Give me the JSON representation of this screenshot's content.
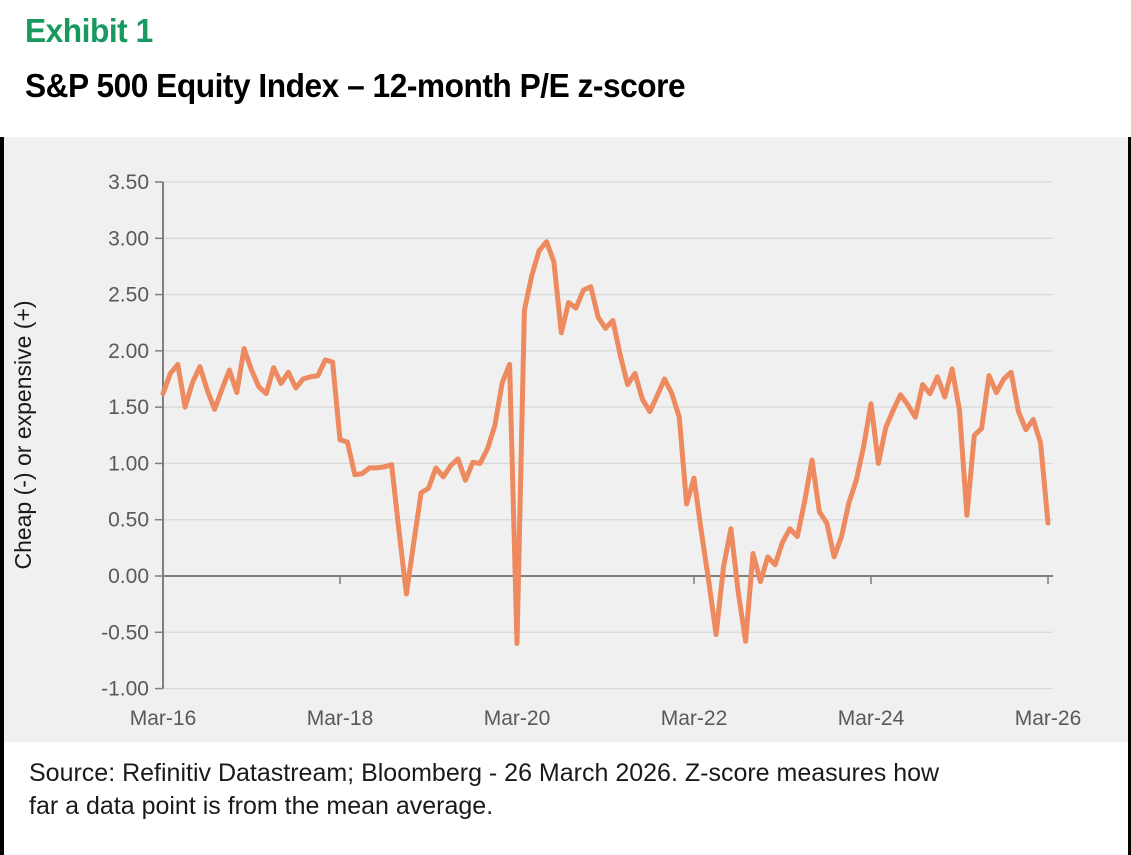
{
  "header": {
    "exhibit_label": "Exhibit 1",
    "title": "S&P 500 Equity Index – 12-month P/E z-score"
  },
  "chart_data": {
    "type": "line",
    "title": "S&P 500 Equity Index – 12-month P/E z-score",
    "xlabel": "",
    "ylabel": "Cheap (-) or expensive (+)",
    "x_start": "Mar-16",
    "x_freq": "monthly",
    "x_tick_labels": [
      "Mar-16",
      "Mar-18",
      "Mar-20",
      "Mar-22",
      "Mar-24",
      "Mar-26"
    ],
    "x_tick_interval_months": 24,
    "ylim": [
      -1.0,
      3.5
    ],
    "ytick_step": 0.5,
    "ytick_format_decimals": 2,
    "grid": true,
    "legend_position": "none",
    "series": [
      {
        "name": "S&P 500 12-month P/E z-score",
        "values": [
          1.62,
          1.8,
          1.88,
          1.5,
          1.72,
          1.86,
          1.65,
          1.48,
          1.66,
          1.83,
          1.63,
          2.02,
          1.83,
          1.68,
          1.62,
          1.85,
          1.71,
          1.81,
          1.67,
          1.75,
          1.77,
          1.78,
          1.92,
          1.9,
          1.21,
          1.19,
          0.9,
          0.91,
          0.96,
          0.96,
          0.97,
          0.99,
          0.4,
          -0.16,
          0.3,
          0.74,
          0.78,
          0.96,
          0.88,
          0.98,
          1.04,
          0.85,
          1.01,
          1.0,
          1.13,
          1.34,
          1.72,
          1.88,
          -0.6,
          2.36,
          2.67,
          2.89,
          2.97,
          2.79,
          2.16,
          2.43,
          2.38,
          2.54,
          2.57,
          2.3,
          2.2,
          2.27,
          1.96,
          1.7,
          1.8,
          1.57,
          1.46,
          1.6,
          1.75,
          1.62,
          1.41,
          0.64,
          0.87,
          0.39,
          -0.05,
          -0.52,
          0.08,
          0.42,
          -0.15,
          -0.58,
          0.2,
          -0.05,
          0.17,
          0.1,
          0.3,
          0.42,
          0.35,
          0.66,
          1.03,
          0.57,
          0.47,
          0.17,
          0.35,
          0.65,
          0.85,
          1.15,
          1.53,
          1.0,
          1.32,
          1.47,
          1.61,
          1.52,
          1.41,
          1.7,
          1.62,
          1.77,
          1.59,
          1.84,
          1.47,
          0.54,
          1.25,
          1.31,
          1.78,
          1.63,
          1.75,
          1.81,
          1.46,
          1.3,
          1.39,
          1.18,
          0.47
        ]
      }
    ]
  },
  "footer": {
    "source_line1": "Source: Refinitiv Datastream; Bloomberg - 26 March 2026. Z-score measures how",
    "source_line2": "far a data point is from the mean average."
  },
  "colors": {
    "accent_green": "#17995F",
    "line_orange": "#ED8A5F",
    "panel_bg": "#F0F0F1",
    "gridline": "#D9D9D9",
    "axis_line": "#7F7F7F",
    "tick_label": "#595959",
    "border_black": "#000000"
  }
}
